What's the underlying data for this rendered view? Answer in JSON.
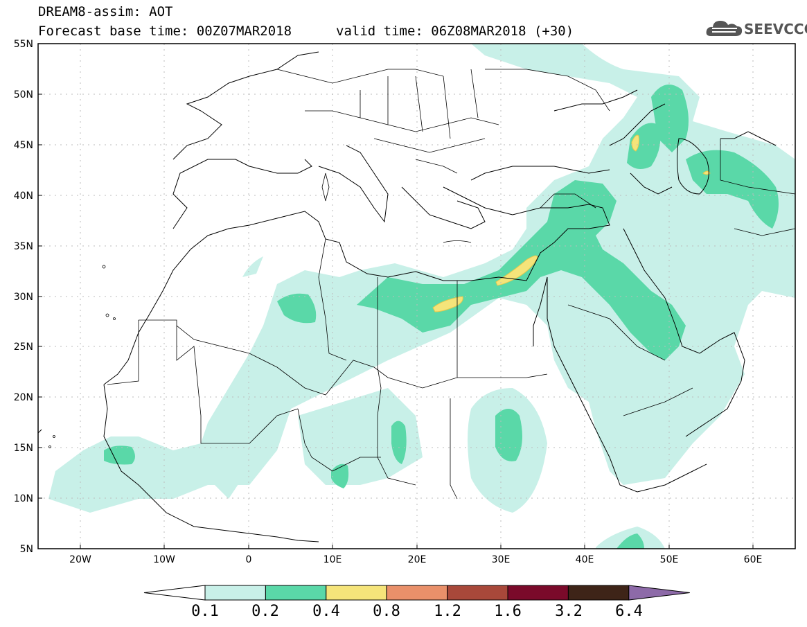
{
  "title": {
    "line1": "DREAM8-assim: AOT",
    "base_time": "Forecast base time: 00Z07MAR2018",
    "valid_time": "valid time: 06Z08MAR2018 (+30)"
  },
  "logo": {
    "text": "SEEVCCC",
    "icon": "cloud-icon"
  },
  "map": {
    "variable": "AOT",
    "lon_range": [
      -25,
      65
    ],
    "lat_range": [
      5,
      55
    ],
    "lat_ticks": [
      "55N",
      "50N",
      "45N",
      "40N",
      "35N",
      "30N",
      "25N",
      "20N",
      "15N",
      "10N",
      "5N"
    ],
    "lon_ticks": [
      "20W",
      "10W",
      "0",
      "10E",
      "20E",
      "30E",
      "40E",
      "50E",
      "60E"
    ],
    "grid": "dotted"
  },
  "colorbar": {
    "levels": [
      "0.1",
      "0.2",
      "0.4",
      "0.8",
      "1.2",
      "1.6",
      "3.2",
      "6.4"
    ],
    "colors": [
      "#ffffff",
      "#c8f0e8",
      "#5ad8a8",
      "#f5e47a",
      "#e9906a",
      "#a8483a",
      "#7a0a2a",
      "#3e2418",
      "#8d6aa8"
    ]
  }
}
